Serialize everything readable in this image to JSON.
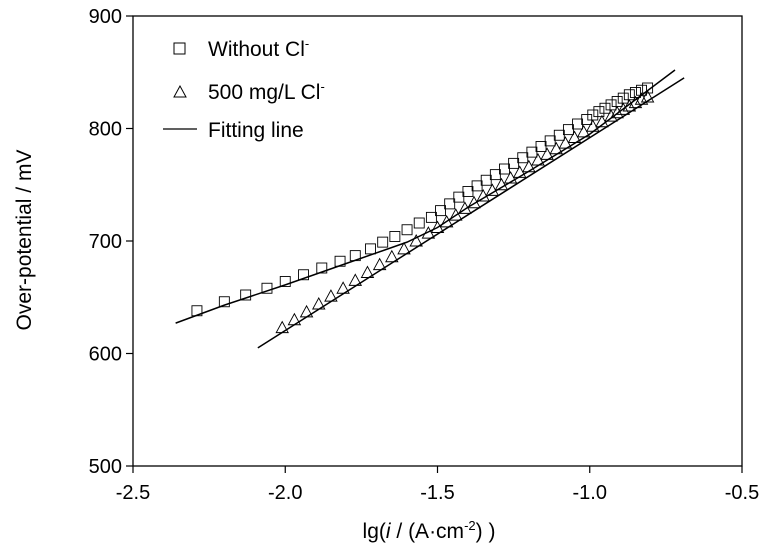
{
  "chart_data": {
    "type": "scatter",
    "title": "",
    "xlabel": "lg(i / (A·cm⁻²) )",
    "ylabel": "Over-potential / mV",
    "xlim": [
      -2.5,
      -0.5
    ],
    "ylim": [
      500,
      900
    ],
    "xticks": [
      -2.5,
      -2.0,
      -1.5,
      -1.0,
      -0.5
    ],
    "yticks": [
      500,
      600,
      700,
      800,
      900
    ],
    "xtick_labels": [
      "-2.5",
      "-2.0",
      "-1.5",
      "-1.0",
      "-0.5"
    ],
    "ytick_labels": [
      "500",
      "600",
      "700",
      "800",
      "900"
    ],
    "grid": false,
    "legend_position": "top-left",
    "legend": [
      {
        "label": "Without Cl",
        "sup": "-",
        "marker": "square"
      },
      {
        "label": "500 mg/L Cl",
        "sup": "-",
        "marker": "triangle"
      },
      {
        "label": "Fitting line",
        "marker": "line"
      }
    ],
    "series": [
      {
        "marker": "square",
        "x": [
          -2.29,
          -2.2,
          -2.13,
          -2.06,
          -2.0,
          -1.94,
          -1.88,
          -1.82,
          -1.77,
          -1.72,
          -1.68,
          -1.64,
          -1.6,
          -1.56,
          -1.52,
          -1.49,
          -1.46,
          -1.43,
          -1.4,
          -1.37,
          -1.34,
          -1.31,
          -1.28,
          -1.25,
          -1.22,
          -1.19,
          -1.16,
          -1.13,
          -1.1,
          -1.07,
          -1.04,
          -1.01,
          -0.99,
          -0.97,
          -0.95,
          -0.93,
          -0.91,
          -0.89,
          -0.87,
          -0.85,
          -0.83,
          -0.81
        ],
        "y": [
          638,
          646,
          652,
          658,
          664,
          670,
          676,
          682,
          687,
          693,
          699,
          704,
          710,
          716,
          721,
          727,
          733,
          739,
          744,
          749,
          754,
          759,
          764,
          769,
          774,
          779,
          784,
          789,
          794,
          799,
          804,
          808,
          812,
          815,
          818,
          821,
          824,
          827,
          830,
          832,
          834,
          836
        ]
      },
      {
        "marker": "triangle",
        "x": [
          -2.01,
          -1.97,
          -1.93,
          -1.89,
          -1.85,
          -1.81,
          -1.77,
          -1.73,
          -1.69,
          -1.65,
          -1.61,
          -1.57,
          -1.53,
          -1.5,
          -1.47,
          -1.44,
          -1.41,
          -1.38,
          -1.35,
          -1.32,
          -1.29,
          -1.26,
          -1.23,
          -1.2,
          -1.17,
          -1.14,
          -1.11,
          -1.08,
          -1.05,
          -1.02,
          -0.99,
          -0.96,
          -0.93,
          -0.91,
          -0.89,
          -0.87,
          -0.85,
          -0.83,
          -0.81
        ],
        "y": [
          623,
          630,
          637,
          644,
          651,
          658,
          665,
          672,
          679,
          686,
          693,
          700,
          707,
          712,
          717,
          723,
          729,
          734,
          740,
          745,
          750,
          756,
          761,
          766,
          772,
          777,
          782,
          787,
          792,
          797,
          802,
          806,
          811,
          814,
          817,
          820,
          823,
          826,
          828
        ]
      }
    ],
    "fit_lines": [
      {
        "x": [
          -2.36,
          -2.2,
          -2.0,
          -1.8,
          -1.6,
          -1.5,
          -1.4,
          -1.2,
          -1.0,
          -0.72
        ],
        "y": [
          627,
          643,
          661,
          680,
          699,
          712,
          730,
          762,
          795,
          852
        ]
      },
      {
        "x": [
          -2.09,
          -0.69
        ],
        "y": [
          605,
          845
        ]
      }
    ]
  }
}
